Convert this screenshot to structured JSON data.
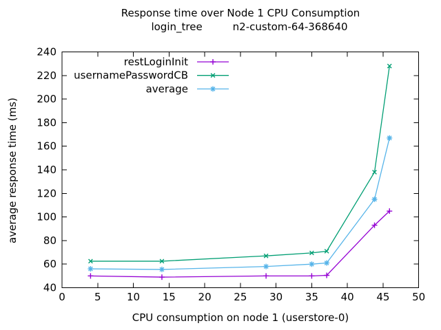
{
  "chart_data": {
    "type": "line",
    "title": "Response time over Node 1 CPU Consumption",
    "subtitle_left": "login_tree",
    "subtitle_right": "n2-custom-64-368640",
    "xlabel": "CPU consumption on node 1 (userstore-0)",
    "ylabel": "average response time (ms)",
    "xlim": [
      0,
      50
    ],
    "ylim": [
      40,
      240
    ],
    "xticks": [
      0,
      5,
      10,
      15,
      20,
      25,
      30,
      35,
      40,
      45,
      50
    ],
    "yticks": [
      40,
      60,
      80,
      100,
      120,
      140,
      160,
      180,
      200,
      220,
      240
    ],
    "grid": false,
    "legend_position": "top-left-inside",
    "x": [
      4.0,
      14.0,
      28.6,
      35.0,
      37.1,
      43.8,
      45.9
    ],
    "series": [
      {
        "name": "restLoginInit",
        "color": "#9400d3",
        "marker": "plus",
        "values": [
          50,
          49,
          50,
          50,
          50.5,
          93,
          105
        ]
      },
      {
        "name": "usernamePasswordCB",
        "color": "#009e73",
        "marker": "cross",
        "values": [
          62.5,
          62.5,
          67,
          69.5,
          71,
          138,
          228
        ]
      },
      {
        "name": "average",
        "color": "#56b4e9",
        "marker": "star",
        "values": [
          56,
          55.5,
          58,
          60,
          61,
          115,
          167
        ]
      }
    ]
  }
}
